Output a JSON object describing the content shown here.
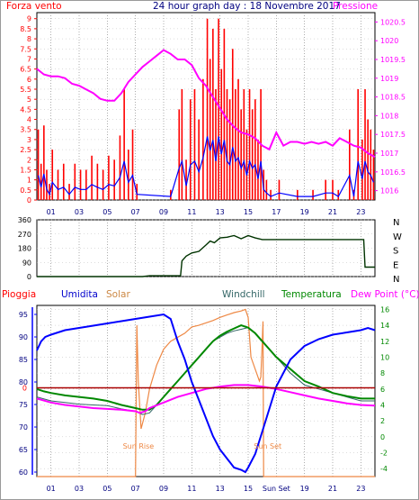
{
  "title": "24 hour graph day : 18 Novembre 2017",
  "top_chart": {
    "left_label": "Forza vento",
    "right_label": "Pressione",
    "left_ticks": [
      "0",
      "0.5",
      "1",
      "1.5",
      "2",
      "2.5",
      "3",
      "3.5",
      "4",
      "4.5",
      "5",
      "5.5",
      "6",
      "6.5",
      "7",
      "7.5",
      "8",
      "8.5",
      "9"
    ],
    "right_ticks": [
      "1016",
      "1016.5",
      "1017",
      "1017.5",
      "1018",
      "1018.5",
      "1019",
      "1019.5",
      "1020",
      "1020.5"
    ],
    "colors": {
      "wind_gust": "#ff0000",
      "wind_avg": "#0000ff",
      "pressure": "#ff00ff",
      "axis_left": "#ff0000",
      "axis_right": "#ff00ff"
    }
  },
  "middle_chart": {
    "left_ticks": [
      "0",
      "90",
      "180",
      "270",
      "360"
    ],
    "compass": [
      "N",
      "W",
      "S",
      "E",
      "N"
    ],
    "colors": {
      "direction": "#003300"
    }
  },
  "bottom_chart": {
    "labels": {
      "rain": "Pioggia",
      "humidity": "Umidita",
      "solar": "Solar",
      "windchill": "Windchill",
      "temperature": "Temperatura",
      "dewpoint": "Dew Point (°C)"
    },
    "left_ticks": [
      "60",
      "65",
      "70",
      "75",
      "80",
      "85",
      "90",
      "95"
    ],
    "rain_tick": "0",
    "right_ticks": [
      "-4",
      "-2",
      "0",
      "2",
      "4",
      "6",
      "8",
      "10",
      "12",
      "14",
      "16"
    ],
    "sunrise_label": "Sun Rise",
    "sunset_label": "Sun Set",
    "colors": {
      "rain": "#ff0000",
      "humidity": "#0000ff",
      "solar": "#ee8844",
      "windchill": "#336666",
      "temperature": "#008800",
      "dewpoint": "#ff00ff",
      "threshold": "#aa0000"
    }
  },
  "x_ticks": [
    "01",
    "03",
    "05",
    "07",
    "09",
    "11",
    "13",
    "15",
    "17",
    "19",
    "21",
    "23"
  ],
  "x_ticks_bottom": [
    "01",
    "03",
    "05",
    "07",
    "09",
    "11",
    "13",
    "15",
    "Sun Set",
    "19",
    "21",
    "23"
  ],
  "chart_data": [
    {
      "type": "bar",
      "title": "24 hour graph day : 18 Novembre 2017",
      "ylabel": "Forza vento",
      "ylim": [
        0,
        9.3
      ],
      "x_range_hours": [
        0,
        24
      ],
      "series": [
        {
          "name": "Forza vento",
          "x": [
            0.1,
            0.3,
            0.5,
            0.7,
            0.9,
            1.1,
            1.5,
            1.9,
            2.3,
            2.7,
            3.1,
            3.5,
            3.9,
            4.3,
            4.7,
            5.1,
            5.5,
            5.9,
            6.2,
            6.5,
            6.8,
            7.1,
            9.5,
            10.1,
            10.3,
            10.6,
            10.9,
            11.2,
            11.5,
            11.8,
            12.1,
            12.3,
            12.5,
            12.7,
            12.9,
            13.1,
            13.3,
            13.5,
            13.7,
            13.9,
            14.1,
            14.3,
            14.5,
            14.7,
            14.9,
            15.1,
            15.3,
            15.5,
            15.7,
            15.9,
            16.1,
            16.3,
            16.6,
            17.2,
            18.5,
            19.6,
            20.5,
            21.0,
            21.4,
            22.2,
            22.5,
            22.8,
            23.1,
            23.3,
            23.5,
            23.7,
            23.9
          ],
          "values": [
            3.5,
            1.8,
            3.7,
            1.5,
            0.8,
            2.5,
            1.5,
            1.8,
            0.8,
            1.8,
            1.5,
            1.5,
            2.2,
            1.8,
            1.5,
            2.2,
            2.0,
            3.2,
            5.5,
            2.5,
            3.5,
            0.8,
            0.5,
            4.5,
            5.5,
            2.0,
            5.0,
            5.5,
            4.0,
            6.0,
            9.0,
            7.0,
            8.5,
            5.5,
            9.0,
            6.5,
            8.5,
            5.5,
            5.0,
            7.5,
            5.5,
            6.0,
            4.5,
            5.5,
            3.5,
            5.5,
            4.5,
            5.0,
            3.0,
            5.5,
            1.5,
            1.0,
            0.5,
            1.0,
            0.5,
            0.5,
            1.0,
            1.0,
            0.5,
            3.5,
            0.5,
            5.5,
            3.0,
            5.5,
            4.0,
            3.5,
            2.5
          ]
        },
        {
          "name": "Pressione",
          "x": [
            0,
            0.5,
            1,
            1.5,
            2,
            2.5,
            3,
            3.5,
            4,
            4.5,
            5,
            5.5,
            6,
            6.5,
            7,
            7.5,
            8,
            8.5,
            9,
            9.5,
            10,
            10.5,
            11,
            11.5,
            12,
            12.5,
            13,
            13.5,
            14,
            14.5,
            15,
            15.5,
            16,
            16.5,
            17,
            17.5,
            18,
            18.5,
            19,
            19.5,
            20,
            20.5,
            21,
            21.5,
            22,
            22.5,
            23,
            23.5,
            24
          ],
          "values": [
            1019.25,
            1019.1,
            1019.05,
            1019.05,
            1019.0,
            1018.85,
            1018.8,
            1018.7,
            1018.6,
            1018.45,
            1018.4,
            1018.4,
            1018.6,
            1018.9,
            1019.1,
            1019.3,
            1019.45,
            1019.6,
            1019.75,
            1019.65,
            1019.5,
            1019.5,
            1019.35,
            1019.0,
            1018.8,
            1018.5,
            1018.2,
            1017.9,
            1017.7,
            1017.55,
            1017.5,
            1017.4,
            1017.2,
            1017.1,
            1017.55,
            1017.2,
            1017.3,
            1017.3,
            1017.25,
            1017.3,
            1017.25,
            1017.3,
            1017.2,
            1017.4,
            1017.3,
            1017.2,
            1017.15,
            1017.0,
            1016.9
          ]
        }
      ]
    },
    {
      "type": "line",
      "ylim": [
        0,
        360
      ],
      "x_range_hours": [
        0,
        24
      ],
      "series": [
        {
          "x": [
            0,
            7.5,
            8,
            10.2,
            10.3,
            10.6,
            11,
            11.5,
            12,
            12.3,
            12.6,
            13,
            13.5,
            14,
            14.5,
            15,
            15.5,
            16,
            17,
            18,
            19,
            20,
            21,
            22,
            23.2,
            23.3,
            24
          ],
          "values": [
            0,
            0,
            5,
            5,
            100,
            130,
            150,
            160,
            200,
            225,
            215,
            245,
            250,
            260,
            240,
            260,
            245,
            235,
            235,
            235,
            235,
            235,
            235,
            235,
            235,
            60,
            60
          ]
        }
      ]
    },
    {
      "type": "line",
      "x_range_hours": [
        0,
        24
      ],
      "humidity_ylim": [
        59,
        97
      ],
      "temperature_ylim": [
        -5,
        16.5
      ],
      "series": [
        {
          "name": "Umidita",
          "x": [
            0,
            0.3,
            0.6,
            1,
            1.5,
            2,
            3,
            4,
            5,
            6,
            7,
            8,
            9,
            9.5,
            10,
            10.5,
            11,
            11.5,
            12,
            12.5,
            13,
            13.5,
            14,
            14.5,
            14.8,
            15,
            15.5,
            16,
            16.5,
            17,
            18,
            19,
            20,
            21,
            22,
            23,
            23.5,
            24
          ],
          "values": [
            87,
            89,
            90,
            90.5,
            91,
            91.5,
            92,
            92.5,
            93,
            93.5,
            94,
            94.5,
            95,
            94,
            89,
            85,
            80,
            76,
            72,
            68,
            65,
            63,
            61,
            60.5,
            60,
            61,
            64,
            69,
            74,
            79,
            85,
            88,
            89.5,
            90.5,
            91,
            91.5,
            92,
            91.5
          ]
        },
        {
          "name": "Solar",
          "x": [
            0,
            6.8,
            7,
            7.1,
            7.2,
            7.4,
            7.7,
            8,
            8.5,
            9,
            9.5,
            10,
            10.5,
            11,
            11.5,
            12,
            12.5,
            13,
            13.5,
            14,
            14.5,
            14.8,
            15,
            15.2,
            15.8,
            15.9,
            16,
            16.05,
            16.1,
            24
          ],
          "values": [
            -5,
            -5,
            -5,
            14,
            7,
            1,
            3,
            6,
            9,
            11,
            12,
            12.5,
            13,
            13.8,
            14,
            14.3,
            14.6,
            15,
            15.3,
            15.6,
            15.8,
            16,
            15,
            10,
            7,
            7.5,
            12,
            14.5,
            -5,
            -5
          ]
        },
        {
          "name": "Windchill",
          "x": [
            0,
            1,
            2,
            3,
            4,
            5,
            6,
            7,
            7.5,
            8,
            8.5,
            9,
            9.5,
            10,
            10.5,
            11,
            11.5,
            12,
            12.5,
            13,
            13.5,
            14,
            14.5,
            15,
            15.5,
            16,
            17,
            18,
            19,
            20,
            21,
            22,
            23,
            24
          ],
          "values": [
            5,
            4.5,
            4.3,
            4.1,
            4.0,
            3.9,
            3.5,
            3.2,
            2.8,
            3.0,
            4,
            5,
            6,
            7,
            8,
            9,
            10,
            11,
            12,
            12.5,
            13,
            13.3,
            13.5,
            13.7,
            13,
            12,
            10,
            8,
            6.5,
            6,
            5.5,
            5,
            4.5,
            4.5
          ]
        },
        {
          "name": "Temperatura",
          "x": [
            0,
            0.5,
            1,
            2,
            3,
            4,
            5,
            6,
            7,
            7.5,
            8,
            8.5,
            9,
            9.5,
            10,
            10.5,
            11,
            11.5,
            12,
            12.5,
            13,
            13.5,
            14,
            14.5,
            15,
            15.5,
            16,
            17,
            18,
            19,
            20,
            21,
            22,
            23,
            24
          ],
          "values": [
            6,
            5.7,
            5.5,
            5.2,
            5.0,
            4.8,
            4.5,
            4.0,
            3.6,
            3.4,
            3.4,
            4,
            5,
            6,
            7,
            8,
            9,
            10,
            11,
            12,
            12.7,
            13.2,
            13.6,
            14,
            13.7,
            13,
            12,
            10,
            8.5,
            7,
            6.3,
            5.5,
            5.1,
            4.8,
            4.8
          ]
        },
        {
          "name": "Dew Point (°C)",
          "x": [
            0,
            1,
            2,
            3,
            4,
            5,
            6,
            7,
            7.3,
            7.7,
            8,
            9,
            10,
            11,
            12,
            13,
            14,
            15,
            16,
            17,
            18,
            19,
            20,
            21,
            22,
            23,
            24
          ],
          "values": [
            4.8,
            4.3,
            4.0,
            3.8,
            3.6,
            3.5,
            3.4,
            3.2,
            3.0,
            3.2,
            3.6,
            4.3,
            5,
            5.5,
            6,
            6.3,
            6.5,
            6.5,
            6.3,
            6.0,
            5.6,
            5.2,
            4.8,
            4.5,
            4.2,
            4.0,
            3.9
          ]
        },
        {
          "name": "Pioggia",
          "x": [
            0,
            24
          ],
          "values": [
            0,
            0
          ]
        }
      ]
    }
  ]
}
